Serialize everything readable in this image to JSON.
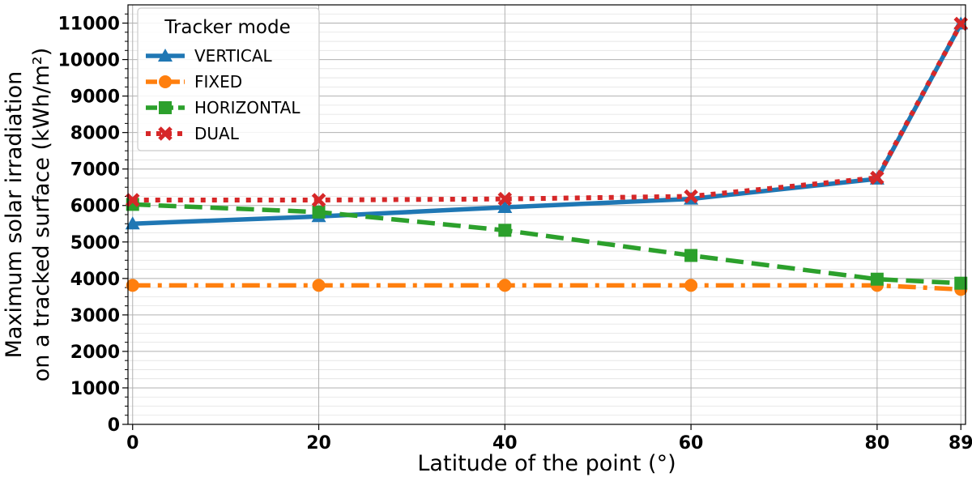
{
  "chart_data": {
    "type": "line",
    "title": "",
    "xlabel": "Latitude of the point (°)",
    "ylabel_lines": [
      "Maximum solar irradiation",
      "on a tracked surface (kWh/m²)"
    ],
    "x": [
      0,
      20,
      40,
      60,
      80,
      89
    ],
    "x_ticks": [
      "0",
      "20",
      "40",
      "60",
      "80",
      "89"
    ],
    "y_ticks": [
      "0",
      "1000",
      "2000",
      "3000",
      "4000",
      "5000",
      "6000",
      "7000",
      "8000",
      "9000",
      "10000",
      "11000"
    ],
    "xlim": [
      -0.5,
      89.5
    ],
    "ylim": [
      0,
      11500
    ],
    "grid": true,
    "legend_title": "Tracker mode",
    "legend_position": "top-left",
    "series": [
      {
        "name": "VERTICAL",
        "values": [
          5500,
          5700,
          5950,
          6180,
          6730,
          10980
        ],
        "color": "#1f77b4",
        "marker": "triangle",
        "linestyle": "solid"
      },
      {
        "name": "FIXED",
        "values": [
          3810,
          3810,
          3810,
          3810,
          3810,
          3700
        ],
        "color": "#ff7f0e",
        "marker": "circle",
        "linestyle": "dashdot"
      },
      {
        "name": "HORIZONTAL",
        "values": [
          6030,
          5820,
          5320,
          4630,
          3980,
          3870
        ],
        "color": "#2ca02c",
        "marker": "square",
        "linestyle": "dashed"
      },
      {
        "name": "DUAL",
        "values": [
          6150,
          6150,
          6180,
          6250,
          6760,
          10980
        ],
        "color": "#d62728",
        "marker": "x",
        "linestyle": "dotted"
      }
    ]
  }
}
